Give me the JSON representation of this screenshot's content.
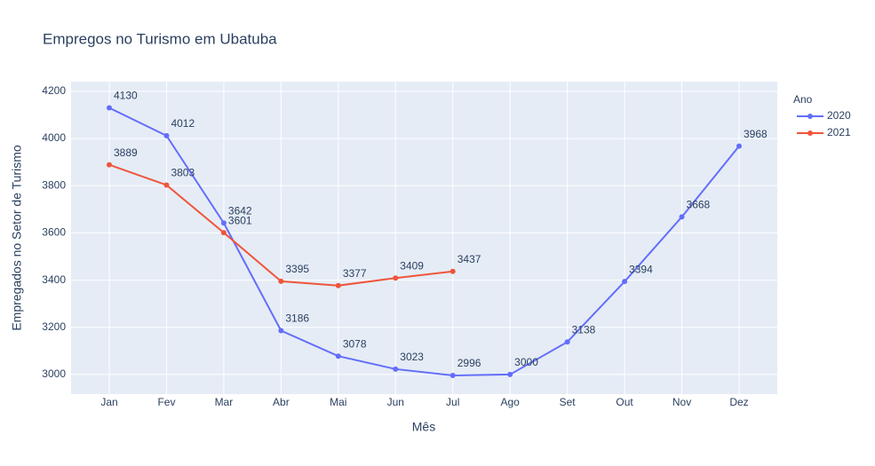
{
  "chart_data": {
    "type": "line",
    "title": "Empregos no Turismo em Ubatuba",
    "x_label": "Mês",
    "y_label": "Empregados no Setor de Turismo",
    "legend_title": "Ano",
    "categories": [
      "Jan",
      "Fev",
      "Mar",
      "Abr",
      "Mai",
      "Jun",
      "Jul",
      "Ago",
      "Set",
      "Out",
      "Nov",
      "Dez"
    ],
    "series": [
      {
        "name": "2020",
        "color": "#636efa",
        "values": [
          4130,
          4012,
          3642,
          3186,
          3078,
          3023,
          2996,
          3000,
          3138,
          3394,
          3668,
          3968
        ]
      },
      {
        "name": "2021",
        "color": "#EF553B",
        "values": [
          3889,
          3803,
          3601,
          3395,
          3377,
          3409,
          3437,
          null,
          null,
          null,
          null,
          null
        ]
      }
    ],
    "ylim": [
      2917,
      4241
    ],
    "yticks": [
      3000,
      3200,
      3400,
      3600,
      3800,
      4000,
      4200
    ],
    "grid": true
  }
}
